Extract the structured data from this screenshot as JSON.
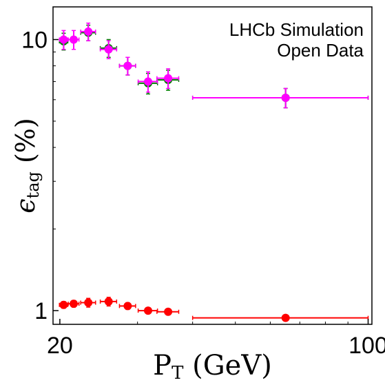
{
  "chart_data": {
    "type": "scatter",
    "xscale": "log",
    "yscale": "log",
    "xlim": [
      19.3,
      102
    ],
    "ylim": [
      0.89,
      13.2
    ],
    "x_ticks": [
      20,
      100
    ],
    "x_tick_labels": [
      "20",
      "100"
    ],
    "x_minor_ticks": [
      30,
      40,
      50,
      60,
      70,
      80,
      90
    ],
    "y_ticks": [
      1,
      10
    ],
    "y_tick_labels": [
      "1",
      "10"
    ],
    "y_minor_ticks": [
      2,
      3,
      4,
      5,
      6,
      7,
      8,
      9
    ],
    "xlabel": {
      "main": "P",
      "sub": "T",
      "rest": " (GeV)"
    },
    "ylabel": {
      "main": "ϵ",
      "sub": "tag",
      "rest": " (%)"
    },
    "annotation": [
      "LHCb Simulation",
      "Open Data"
    ],
    "grid": false,
    "series": [
      {
        "color": "#008000",
        "points": [
          {
            "x": 20.4,
            "xerr": [
              0.45,
              0.45
            ],
            "y": 9.85,
            "yerr": [
              0.7,
              0.7
            ]
          },
          {
            "x": 23.2,
            "xerr": [
              0.9,
              0.9
            ],
            "y": 10.6,
            "yerr": [
              0.7,
              0.7
            ]
          },
          {
            "x": 25.8,
            "xerr": [
              1.1,
              1.1
            ],
            "y": 9.3,
            "yerr": [
              0.7,
              0.7
            ]
          },
          {
            "x": 28.5,
            "xerr": [
              1.2,
              1.2
            ],
            "y": 8.0,
            "yerr": [
              0.6,
              0.6
            ]
          },
          {
            "x": 31.7,
            "xerr": [
              1.6,
              1.6
            ],
            "y": 6.9,
            "yerr": [
              0.6,
              0.6
            ]
          },
          {
            "x": 35.2,
            "xerr": [
              2.0,
              2.0
            ],
            "y": 7.1,
            "yerr": [
              0.6,
              0.6
            ]
          },
          {
            "x": 65.0,
            "xerr": [
              25.0,
              35.0
            ],
            "y": 6.1,
            "yerr": [
              0.5,
              0.5
            ]
          }
        ]
      },
      {
        "color": "#ff00ff",
        "points": [
          {
            "x": 20.4,
            "xerr": [
              0.45,
              0.45
            ],
            "y": 10.0,
            "yerr": [
              0.8,
              0.8
            ]
          },
          {
            "x": 21.5,
            "xerr": [
              0.6,
              0.6
            ],
            "y": 10.0,
            "yerr": [
              0.8,
              0.8
            ]
          },
          {
            "x": 23.2,
            "xerr": [
              0.9,
              0.9
            ],
            "y": 10.7,
            "yerr": [
              0.8,
              0.8
            ]
          },
          {
            "x": 25.8,
            "xerr": [
              1.1,
              1.1
            ],
            "y": 9.2,
            "yerr": [
              0.7,
              0.7
            ]
          },
          {
            "x": 28.5,
            "xerr": [
              1.2,
              1.2
            ],
            "y": 8.0,
            "yerr": [
              0.6,
              0.6
            ]
          },
          {
            "x": 31.7,
            "xerr": [
              1.6,
              1.6
            ],
            "y": 7.0,
            "yerr": [
              0.6,
              0.6
            ]
          },
          {
            "x": 35.2,
            "xerr": [
              2.0,
              2.0
            ],
            "y": 7.2,
            "yerr": [
              0.6,
              0.6
            ]
          },
          {
            "x": 65.0,
            "xerr": [
              25.0,
              35.0
            ],
            "y": 6.1,
            "yerr": [
              0.5,
              0.5
            ]
          }
        ]
      },
      {
        "color": "#ff0000",
        "points": [
          {
            "x": 20.4,
            "xerr": [
              0.45,
              0.45
            ],
            "y": 1.05,
            "yerr": [
              0.03,
              0.03
            ]
          },
          {
            "x": 21.5,
            "xerr": [
              0.6,
              0.6
            ],
            "y": 1.06,
            "yerr": [
              0.03,
              0.03
            ]
          },
          {
            "x": 23.2,
            "xerr": [
              0.9,
              0.9
            ],
            "y": 1.07,
            "yerr": [
              0.04,
              0.04
            ]
          },
          {
            "x": 25.8,
            "xerr": [
              1.1,
              1.1
            ],
            "y": 1.08,
            "yerr": [
              0.04,
              0.04
            ]
          },
          {
            "x": 28.5,
            "xerr": [
              1.2,
              1.2
            ],
            "y": 1.04,
            "yerr": [
              0.03,
              0.03
            ]
          },
          {
            "x": 31.7,
            "xerr": [
              1.6,
              1.6
            ],
            "y": 1.0,
            "yerr": [
              0.02,
              0.02
            ]
          },
          {
            "x": 35.2,
            "xerr": [
              2.0,
              2.0
            ],
            "y": 0.99,
            "yerr": [
              0.02,
              0.02
            ]
          },
          {
            "x": 65.0,
            "xerr": [
              25.0,
              35.0
            ],
            "y": 0.94,
            "yerr": [
              0.02,
              0.02
            ]
          }
        ]
      }
    ]
  }
}
